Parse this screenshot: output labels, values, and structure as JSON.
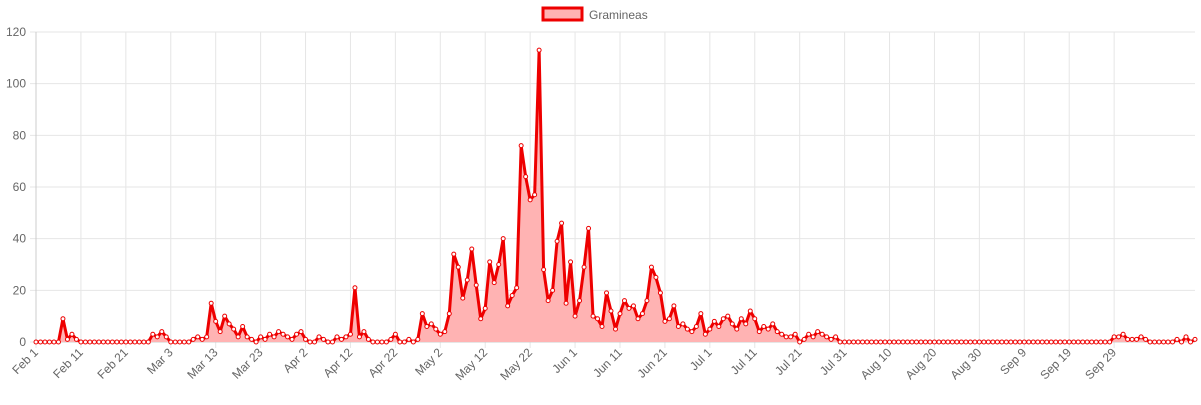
{
  "chart_data": {
    "type": "area",
    "x_tick_labels": [
      "Feb 1",
      "Feb 11",
      "Feb 21",
      "Mar 3",
      "Mar 13",
      "Mar 23",
      "Apr 2",
      "Apr 12",
      "Apr 22",
      "May 2",
      "May 12",
      "May 22",
      "Jun 1",
      "Jun 11",
      "Jun 21",
      "Jul 1",
      "Jul 11",
      "Jul 21",
      "Jul 31",
      "Aug 10",
      "Aug 20",
      "Aug 30",
      "Sep 9",
      "Sep 19",
      "Sep 29"
    ],
    "ylim": [
      0,
      120
    ],
    "y_ticks": [
      0,
      20,
      40,
      60,
      80,
      100,
      120
    ],
    "grid": true,
    "legend_position": "top-center",
    "series": [
      {
        "name": "Gramineas",
        "line_color": "#ee0000",
        "fill_color": "#ffb3b3",
        "point_fill": "#ffffff",
        "x_start": "Feb 1",
        "values": [
          0,
          0,
          0,
          0,
          0,
          0,
          9,
          1,
          3,
          1,
          0,
          0,
          0,
          0,
          0,
          0,
          0,
          0,
          0,
          0,
          0,
          0,
          0,
          0,
          0,
          0,
          3,
          2,
          4,
          2,
          0,
          0,
          0,
          0,
          0,
          1,
          2,
          1,
          2,
          15,
          8,
          4,
          10,
          7,
          5,
          2,
          6,
          2,
          1,
          0,
          2,
          1,
          3,
          2,
          4,
          3,
          2,
          1,
          3,
          4,
          1,
          0,
          0,
          2,
          1,
          0,
          0,
          2,
          1,
          2,
          3,
          21,
          2,
          4,
          1,
          0,
          0,
          0,
          0,
          1,
          3,
          0,
          0,
          1,
          0,
          1,
          11,
          6,
          7,
          5,
          3,
          4,
          11,
          34,
          29,
          17,
          24,
          36,
          22,
          9,
          13,
          31,
          23,
          30,
          40,
          14,
          18,
          21,
          76,
          64,
          55,
          57,
          113,
          28,
          16,
          20,
          39,
          46,
          15,
          31,
          10,
          16,
          29,
          44,
          10,
          9,
          6,
          19,
          12,
          5,
          11,
          16,
          13,
          14,
          9,
          11,
          16,
          29,
          25,
          19,
          8,
          9,
          14,
          6,
          7,
          5,
          4,
          6,
          11,
          3,
          5,
          8,
          6,
          9,
          10,
          7,
          5,
          9,
          7,
          12,
          9,
          4,
          6,
          5,
          7,
          4,
          3,
          2,
          2,
          3,
          0,
          1,
          3,
          2,
          4,
          3,
          2,
          1,
          2,
          0,
          0,
          0,
          0,
          0,
          0,
          0,
          0,
          0,
          0,
          0,
          0,
          0,
          0,
          0,
          0,
          0,
          0,
          0,
          0,
          0,
          0,
          0,
          0,
          0,
          0,
          0,
          0,
          0,
          0,
          0,
          0,
          0,
          0,
          0,
          0,
          0,
          0,
          0,
          0,
          0,
          0,
          0,
          0,
          0,
          0,
          0,
          0,
          0,
          0,
          0,
          0,
          0,
          0,
          0,
          0,
          0,
          0,
          0,
          0,
          0,
          2,
          2,
          3,
          1,
          1,
          1,
          2,
          1,
          0,
          0,
          0,
          0,
          0,
          0,
          1,
          0,
          2,
          0,
          1
        ]
      }
    ]
  }
}
